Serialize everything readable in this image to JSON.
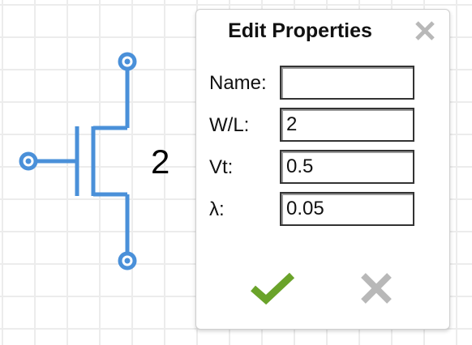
{
  "schematic": {
    "component_label": "2",
    "wire_color": "#4a90d9"
  },
  "dialog": {
    "title": "Edit Properties",
    "close_icon": "close-icon",
    "fields": [
      {
        "label": "Name:",
        "value": ""
      },
      {
        "label": "W/L:",
        "value": "2"
      },
      {
        "label": "Vt:",
        "value": "0.5"
      },
      {
        "label": "λ:",
        "value": "0.05"
      }
    ],
    "ok_icon": "checkmark-icon",
    "ok_color": "#6aa32a",
    "cancel_icon": "x-icon",
    "cancel_color": "#b8b8b8"
  }
}
